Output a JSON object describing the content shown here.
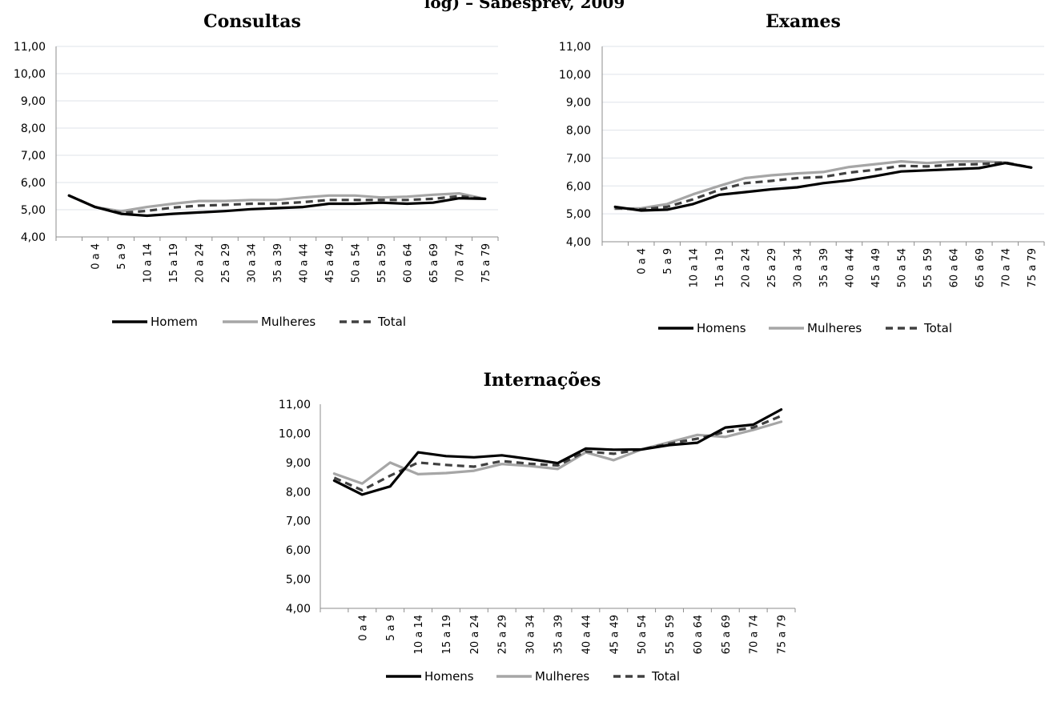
{
  "page": {
    "top_title": "log) – Sabesprev, 2009"
  },
  "chart_data": [
    {
      "type": "line",
      "title": "Consultas",
      "ylim": [
        4,
        11
      ],
      "yticks": [
        "4,00",
        "5,00",
        "6,00",
        "7,00",
        "8,00",
        "9,00",
        "10,00",
        "11,00"
      ],
      "categories": [
        "",
        "0 a 4",
        "5 a 9",
        "10 a 14",
        "15 a 19",
        "20 a 24",
        "25 a 29",
        "30 a 34",
        "35 a 39",
        "40 a 44",
        "45 a 49",
        "50 a 54",
        "55 a 59",
        "60 a 64",
        "65 a 69",
        "70 a 74",
        "75 a 79"
      ],
      "grid": true,
      "legend": "bottom",
      "series": [
        {
          "name": "Homem",
          "color": "#000000",
          "dash": "solid",
          "values": [
            5.52,
            5.1,
            4.85,
            4.78,
            4.85,
            4.9,
            4.95,
            5.02,
            5.06,
            5.1,
            5.22,
            5.22,
            5.26,
            5.22,
            5.26,
            5.42,
            5.4
          ]
        },
        {
          "name": "Mulheres",
          "color": "#a6a6a6",
          "dash": "solid",
          "values": [
            5.52,
            5.1,
            4.94,
            5.1,
            5.22,
            5.32,
            5.32,
            5.36,
            5.36,
            5.45,
            5.52,
            5.52,
            5.45,
            5.48,
            5.55,
            5.6,
            5.4
          ]
        },
        {
          "name": "Total",
          "color": "#404040",
          "dash": "dashed",
          "values": [
            5.52,
            5.1,
            4.88,
            4.96,
            5.08,
            5.15,
            5.18,
            5.22,
            5.22,
            5.28,
            5.36,
            5.36,
            5.36,
            5.36,
            5.4,
            5.5,
            5.4
          ]
        }
      ]
    },
    {
      "type": "line",
      "title": "Exames",
      "ylim": [
        4,
        11
      ],
      "yticks": [
        "4,00",
        "5,00",
        "6,00",
        "7,00",
        "8,00",
        "9,00",
        "10,00",
        "11,00"
      ],
      "categories": [
        "",
        "0 a 4",
        "5 a 9",
        "10 a 14",
        "15 a 19",
        "20 a 24",
        "25 a 29",
        "30 a 34",
        "35 a 39",
        "40 a 44",
        "45 a 49",
        "50 a 54",
        "55 a 59",
        "60 a 64",
        "65 a 69",
        "70 a 74",
        "75 a 79"
      ],
      "grid": true,
      "legend": "bottom",
      "series": [
        {
          "name": "Homens",
          "color": "#000000",
          "dash": "solid",
          "values": [
            5.25,
            5.12,
            5.15,
            5.35,
            5.68,
            5.78,
            5.88,
            5.95,
            6.1,
            6.2,
            6.35,
            6.52,
            6.56,
            6.6,
            6.64,
            6.82,
            6.66
          ]
        },
        {
          "name": "Mulheres",
          "color": "#a6a6a6",
          "dash": "solid",
          "values": [
            5.18,
            5.2,
            5.35,
            5.7,
            6.0,
            6.28,
            6.38,
            6.45,
            6.5,
            6.68,
            6.78,
            6.88,
            6.82,
            6.88,
            6.88,
            6.84,
            6.66
          ]
        },
        {
          "name": "Total",
          "color": "#404040",
          "dash": "dashed",
          "values": [
            5.2,
            5.16,
            5.25,
            5.52,
            5.86,
            6.1,
            6.18,
            6.28,
            6.32,
            6.48,
            6.58,
            6.72,
            6.7,
            6.76,
            6.78,
            6.84,
            6.66
          ]
        }
      ]
    },
    {
      "type": "line",
      "title": "Internações",
      "ylim": [
        4,
        11
      ],
      "yticks": [
        "4,00",
        "5,00",
        "6,00",
        "7,00",
        "8,00",
        "9,00",
        "10,00",
        "11,00"
      ],
      "categories": [
        "",
        "0 a 4",
        "5 a 9",
        "10 a 14",
        "15 a 19",
        "20 a 24",
        "25 a 29",
        "30 a 34",
        "35 a 39",
        "40 a 44",
        "45 a 49",
        "50 a 54",
        "55 a 59",
        "60 a 64",
        "65 a 69",
        "70 a 74",
        "75 a 79"
      ],
      "grid": false,
      "legend": "bottom",
      "series": [
        {
          "name": "Homens",
          "color": "#000000",
          "dash": "solid",
          "values": [
            8.38,
            7.9,
            8.18,
            9.35,
            9.22,
            9.18,
            9.25,
            9.12,
            8.98,
            9.48,
            9.44,
            9.45,
            9.6,
            9.68,
            10.2,
            10.3,
            10.82
          ]
        },
        {
          "name": "Mulheres",
          "color": "#a6a6a6",
          "dash": "solid",
          "values": [
            8.62,
            8.28,
            9.0,
            8.6,
            8.64,
            8.72,
            8.95,
            8.88,
            8.78,
            9.35,
            9.08,
            9.45,
            9.7,
            9.95,
            9.88,
            10.12,
            10.4
          ]
        },
        {
          "name": "Total",
          "color": "#404040",
          "dash": "dashed",
          "values": [
            8.48,
            8.05,
            8.55,
            9.0,
            8.92,
            8.86,
            9.05,
            8.96,
            8.9,
            9.38,
            9.3,
            9.45,
            9.65,
            9.82,
            10.05,
            10.2,
            10.6
          ]
        }
      ]
    }
  ]
}
